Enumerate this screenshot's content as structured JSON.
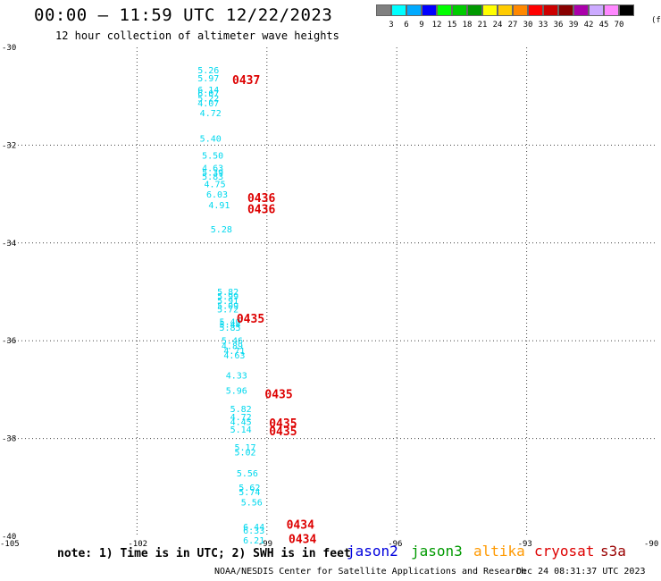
{
  "title": "00:00 – 11:59 UTC 12/22/2023",
  "subtitle": "12 hour collection of altimeter wave heights",
  "note": "note: 1) Time is in UTC; 2) SWH is in feet",
  "credit": "NOAA/NESDIS Center for Satellite Applications and Research",
  "timestamp": "Dec 24 08:31:37 UTC 2023",
  "satellites": [
    {
      "name": "jason2",
      "color": "#0000dd"
    },
    {
      "name": "jason3",
      "color": "#009900"
    },
    {
      "name": "altika",
      "color": "#ff9900"
    },
    {
      "name": "cryosat",
      "color": "#dd0000"
    },
    {
      "name": "s3a",
      "color": "#990000"
    }
  ],
  "legend": {
    "colors": [
      "#808080",
      "#00ffff",
      "#00aaff",
      "#0000ff",
      "#00ff00",
      "#00cc00",
      "#009900",
      "#ffff00",
      "#ffcc00",
      "#ff8800",
      "#ff0000",
      "#cc0000",
      "#880000",
      "#aa00aa",
      "#ccaaff",
      "#ff88ff",
      "#000000"
    ],
    "labels": [
      "3",
      "6",
      "9",
      "12",
      "15",
      "18",
      "21",
      "24",
      "27",
      "30",
      "33",
      "36",
      "39",
      "42",
      "45",
      "70"
    ],
    "unit": "(ft)"
  },
  "map": {
    "lon_range": [
      -105,
      -90
    ],
    "lat_range": [
      -40,
      -30
    ],
    "lon_ticks": [
      -105,
      -102,
      -99,
      -96,
      -93,
      -90
    ],
    "lat_ticks": [
      -30,
      -32,
      -34,
      -36,
      -38,
      -40
    ],
    "lon_tick_labels": [
      "-105",
      "-102",
      "-99",
      "-96",
      "-93",
      "-90"
    ],
    "lat_tick_labels": [
      "-30",
      "-32",
      "-34",
      "-36",
      "-38",
      "-40"
    ],
    "grid": true
  },
  "observations": [
    {
      "lon": -100.6,
      "lat": -30.46,
      "swh": "5.26"
    },
    {
      "lon": -100.6,
      "lat": -30.62,
      "swh": "5.97"
    },
    {
      "lon": -100.6,
      "lat": -30.86,
      "swh": "6.14"
    },
    {
      "lon": -100.6,
      "lat": -30.93,
      "swh": "6.07"
    },
    {
      "lon": -100.6,
      "lat": -31.03,
      "swh": "5.22"
    },
    {
      "lon": -100.6,
      "lat": -31.13,
      "swh": "4.07"
    },
    {
      "lon": -100.55,
      "lat": -31.33,
      "swh": "4.72"
    },
    {
      "lon": -100.55,
      "lat": -31.86,
      "swh": "5.40"
    },
    {
      "lon": -100.5,
      "lat": -32.2,
      "swh": "5.50"
    },
    {
      "lon": -100.5,
      "lat": -32.46,
      "swh": "4.63"
    },
    {
      "lon": -100.5,
      "lat": -32.55,
      "swh": "5.39"
    },
    {
      "lon": -100.5,
      "lat": -32.63,
      "swh": "5.83"
    },
    {
      "lon": -100.45,
      "lat": -32.79,
      "swh": "4.75"
    },
    {
      "lon": -100.4,
      "lat": -33.0,
      "swh": "6.03"
    },
    {
      "lon": -100.35,
      "lat": -33.22,
      "swh": "4.91"
    },
    {
      "lon": -100.3,
      "lat": -33.71,
      "swh": "5.28"
    },
    {
      "lon": -100.15,
      "lat": -34.99,
      "swh": "5.82"
    },
    {
      "lon": -100.15,
      "lat": -35.08,
      "swh": "5.99"
    },
    {
      "lon": -100.15,
      "lat": -35.17,
      "swh": "5.91"
    },
    {
      "lon": -100.15,
      "lat": -35.27,
      "swh": "5.09"
    },
    {
      "lon": -100.15,
      "lat": -35.35,
      "swh": "5.72"
    },
    {
      "lon": -100.1,
      "lat": -35.6,
      "swh": "5.40"
    },
    {
      "lon": -100.1,
      "lat": -35.66,
      "swh": "5.44"
    },
    {
      "lon": -100.1,
      "lat": -35.72,
      "swh": "5.85"
    },
    {
      "lon": -100.05,
      "lat": -35.99,
      "swh": "5.46"
    },
    {
      "lon": -100.05,
      "lat": -36.1,
      "swh": "4.89"
    },
    {
      "lon": -100.0,
      "lat": -36.2,
      "swh": "4.71"
    },
    {
      "lon": -100.0,
      "lat": -36.29,
      "swh": "4.63"
    },
    {
      "lon": -99.95,
      "lat": -36.7,
      "swh": "4.33"
    },
    {
      "lon": -99.95,
      "lat": -37.01,
      "swh": "5.96"
    },
    {
      "lon": -99.85,
      "lat": -37.39,
      "swh": "5.82"
    },
    {
      "lon": -99.85,
      "lat": -37.55,
      "swh": "4.72"
    },
    {
      "lon": -99.85,
      "lat": -37.65,
      "swh": "4.45"
    },
    {
      "lon": -99.85,
      "lat": -37.81,
      "swh": "5.14"
    },
    {
      "lon": -99.75,
      "lat": -38.17,
      "swh": "5.17"
    },
    {
      "lon": -99.75,
      "lat": -38.27,
      "swh": "5.02"
    },
    {
      "lon": -99.7,
      "lat": -38.7,
      "swh": "5.56"
    },
    {
      "lon": -99.65,
      "lat": -38.99,
      "swh": "5.62"
    },
    {
      "lon": -99.65,
      "lat": -39.09,
      "swh": "5.74"
    },
    {
      "lon": -99.6,
      "lat": -39.3,
      "swh": "5.56"
    },
    {
      "lon": -99.55,
      "lat": -39.8,
      "swh": "6.44"
    },
    {
      "lon": -99.55,
      "lat": -39.87,
      "swh": "6.33"
    },
    {
      "lon": -99.55,
      "lat": -40.07,
      "swh": "6.21"
    }
  ],
  "time_labels": [
    {
      "lon": -99.8,
      "lat": -30.66,
      "text": "0437"
    },
    {
      "lon": -99.45,
      "lat": -33.07,
      "text": "0436"
    },
    {
      "lon": -99.45,
      "lat": -33.3,
      "text": "0436"
    },
    {
      "lon": -99.7,
      "lat": -35.54,
      "text": "0435"
    },
    {
      "lon": -99.05,
      "lat": -37.08,
      "text": "0435"
    },
    {
      "lon": -98.95,
      "lat": -37.68,
      "text": "0435"
    },
    {
      "lon": -98.95,
      "lat": -37.84,
      "text": "0435"
    },
    {
      "lon": -98.55,
      "lat": -39.75,
      "text": "0434"
    },
    {
      "lon": -98.5,
      "lat": -40.05,
      "text": "0434"
    }
  ],
  "obs_color": "#00d8ee",
  "time_color": "#dd0000"
}
